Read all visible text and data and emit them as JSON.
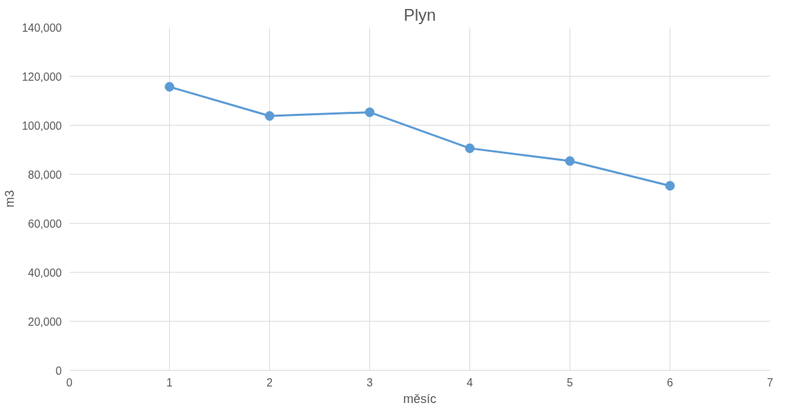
{
  "chart_data": {
    "type": "line",
    "title": "Plyn",
    "xlabel": "měsíc",
    "ylabel": "m3",
    "x": [
      1,
      2,
      3,
      4,
      5,
      6
    ],
    "series": [
      {
        "color": "#5b9bd5",
        "values": [
          115700,
          103800,
          105300,
          90600,
          85400,
          75300
        ]
      }
    ],
    "xlim": [
      0,
      7
    ],
    "xticks": [
      0,
      1,
      2,
      3,
      4,
      5,
      6,
      7
    ],
    "ylim": [
      0,
      140000
    ],
    "yticks": [
      0,
      {
        "value": 20000,
        "label": "20,000"
      },
      {
        "value": 40000,
        "label": "40,000"
      },
      {
        "value": 60000,
        "label": "60,000"
      },
      {
        "value": 80000,
        "label": "80,000"
      },
      {
        "value": 100000,
        "label": "100,000"
      },
      {
        "value": 120000,
        "label": "120,000"
      },
      {
        "value": 140000,
        "label": "140,000"
      }
    ],
    "grid": true,
    "marker": "circle",
    "line_style": "solid"
  }
}
